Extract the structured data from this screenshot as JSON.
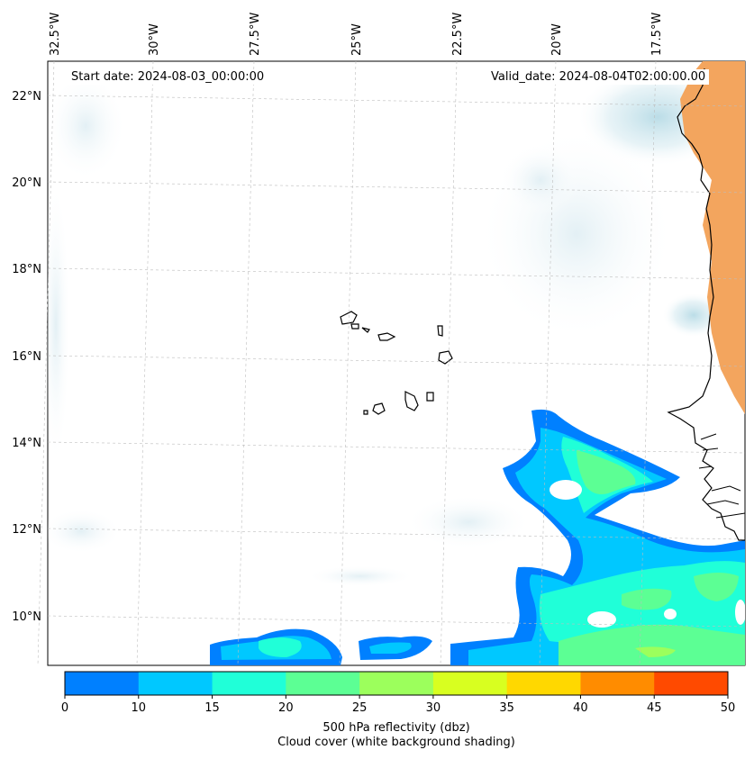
{
  "header": {
    "start_date": "Start date: 2024-08-03_00:00:00",
    "valid_date": "Valid_date: 2024-08-04T02:00:00.00"
  },
  "axes": {
    "lon_labels": [
      "32.5°W",
      "30°W",
      "27.5°W",
      "25°W",
      "22.5°W",
      "20°W",
      "17.5°W"
    ],
    "lat_labels": [
      "22°N",
      "20°N",
      "18°N",
      "16°N",
      "14°N",
      "12°N",
      "10°N"
    ]
  },
  "colorbar": {
    "ticks": [
      "0",
      "10",
      "15",
      "20",
      "25",
      "30",
      "35",
      "40",
      "45",
      "50"
    ],
    "colors": [
      "#0080ff",
      "#00c8ff",
      "#20ffd8",
      "#5cff94",
      "#9cff5c",
      "#d8ff20",
      "#ffd800",
      "#ff8c00",
      "#ff4a00"
    ],
    "label": "500 hPa reflectivity (dbz)",
    "sublabel": "Cloud cover (white background shading)"
  },
  "map_colors": {
    "cloud_cover": "#cfe6ee",
    "land_heat": "#f3a55e"
  }
}
